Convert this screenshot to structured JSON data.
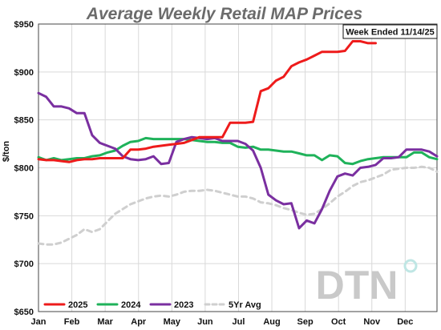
{
  "chart_data": {
    "type": "line",
    "title": "Average Weekly Retail MAP Prices",
    "ylabel": "$/ton",
    "xlabel": "",
    "annotation": "Week Ended 11/14/25",
    "watermark": "DTN",
    "ylim": [
      650,
      950
    ],
    "xlim": [
      0,
      52
    ],
    "yticks": [
      650,
      700,
      750,
      800,
      850,
      900,
      950
    ],
    "ytick_labels": [
      "$650",
      "$700",
      "$750",
      "$800",
      "$850",
      "$900",
      "$950"
    ],
    "categories": [
      "Jan",
      "Feb",
      "Mar",
      "Apr",
      "May",
      "Jun",
      "Jul",
      "Aug",
      "Sep",
      "Oct",
      "Nov",
      "Dec"
    ],
    "category_positions": [
      0,
      4.35,
      8.7,
      13.05,
      17.4,
      21.75,
      26.1,
      30.45,
      34.8,
      39.15,
      43.5,
      47.85
    ],
    "grid": true,
    "legend_position": "bottom-left",
    "series": [
      {
        "name": "2025",
        "color": "#ee1b1b",
        "dash": "",
        "x": [
          0,
          1,
          2,
          3,
          4,
          5,
          6,
          7,
          8,
          9,
          10,
          11,
          12,
          13,
          14,
          15,
          16,
          17,
          18,
          19,
          20,
          21,
          22,
          23,
          24,
          25,
          26,
          27,
          28,
          29,
          30,
          31,
          32,
          33,
          34,
          35,
          36,
          37,
          38,
          39,
          40,
          41,
          42,
          43,
          44
        ],
        "y": [
          809,
          808,
          808,
          807,
          806,
          808,
          809,
          809,
          810,
          810,
          810,
          810,
          819,
          819,
          820,
          822,
          823,
          824,
          825,
          826,
          829,
          832,
          832,
          832,
          832,
          847,
          847,
          847,
          848,
          880,
          883,
          891,
          895,
          906,
          910,
          913,
          917,
          921,
          921,
          921,
          922,
          932,
          932,
          930,
          930
        ]
      },
      {
        "name": "2024",
        "color": "#1fb25a",
        "dash": "",
        "x": [
          0,
          1,
          2,
          3,
          4,
          5,
          6,
          7,
          8,
          9,
          10,
          11,
          12,
          13,
          14,
          15,
          16,
          17,
          18,
          19,
          20,
          21,
          22,
          23,
          24,
          25,
          26,
          27,
          28,
          29,
          30,
          31,
          32,
          33,
          34,
          35,
          36,
          37,
          38,
          39,
          40,
          41,
          42,
          43,
          44,
          45,
          46,
          47,
          48,
          49,
          50,
          51,
          52
        ],
        "y": [
          811,
          808,
          810,
          808,
          809,
          810,
          810,
          812,
          813,
          816,
          818,
          823,
          827,
          828,
          831,
          830,
          830,
          830,
          830,
          830,
          829,
          828,
          827,
          827,
          826,
          826,
          822,
          821,
          822,
          819,
          819,
          818,
          817,
          817,
          815,
          813,
          813,
          808,
          813,
          812,
          805,
          804,
          807,
          809,
          810,
          811,
          811,
          811,
          811,
          816,
          816,
          811,
          809
        ]
      },
      {
        "name": "2023",
        "color": "#7a2fa0",
        "dash": "",
        "x": [
          0,
          1,
          2,
          3,
          4,
          5,
          6,
          7,
          8,
          9,
          10,
          11,
          12,
          13,
          14,
          15,
          16,
          17,
          18,
          19,
          20,
          21,
          22,
          23,
          24,
          25,
          26,
          27,
          28,
          29,
          30,
          31,
          32,
          33,
          34,
          35,
          36,
          37,
          38,
          39,
          40,
          41,
          42,
          43,
          44,
          45,
          46,
          47,
          48,
          49,
          50,
          51,
          52
        ],
        "y": [
          878,
          874,
          864,
          864,
          862,
          857,
          857,
          834,
          826,
          823,
          820,
          812,
          809,
          808,
          809,
          812,
          804,
          805,
          827,
          830,
          832,
          831,
          830,
          831,
          828,
          828,
          828,
          825,
          818,
          800,
          772,
          766,
          762,
          763,
          737,
          745,
          742,
          757,
          776,
          791,
          794,
          792,
          800,
          801,
          803,
          810,
          810,
          811,
          819,
          819,
          819,
          817,
          812
        ]
      },
      {
        "name": "5Yr Avg",
        "color": "#cfcfcf",
        "dash": "6,5",
        "x": [
          0,
          1,
          2,
          3,
          4,
          5,
          6,
          7,
          8,
          9,
          10,
          11,
          12,
          13,
          14,
          15,
          16,
          17,
          18,
          19,
          20,
          21,
          22,
          23,
          24,
          25,
          26,
          27,
          28,
          29,
          30,
          31,
          32,
          33,
          34,
          35,
          36,
          37,
          38,
          39,
          40,
          41,
          42,
          43,
          44,
          45,
          46,
          47,
          48,
          49,
          50,
          51,
          52
        ],
        "y": [
          721,
          720,
          720,
          722,
          726,
          730,
          736,
          733,
          736,
          744,
          752,
          757,
          762,
          765,
          768,
          770,
          771,
          770,
          772,
          775,
          776,
          776,
          777,
          776,
          774,
          772,
          770,
          770,
          768,
          764,
          763,
          761,
          758,
          756,
          753,
          751,
          752,
          757,
          763,
          770,
          775,
          781,
          785,
          787,
          790,
          793,
          798,
          799,
          800,
          800,
          801,
          800,
          796
        ]
      }
    ]
  }
}
